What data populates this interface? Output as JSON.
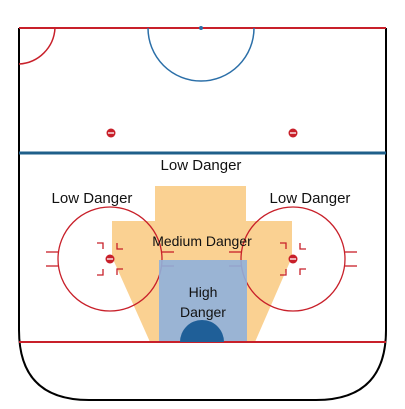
{
  "zones": {
    "low_danger_top": "Low Danger",
    "low_danger_left": "Low Danger",
    "low_danger_right": "Low Danger",
    "medium_danger": "Medium Danger",
    "high_danger_line1": "High",
    "high_danger_line2": "Danger"
  },
  "colors": {
    "boards": "#000000",
    "red_line": "#c8202a",
    "blue_line": "#1f5f8a",
    "center_circle": "#2b6fa8",
    "medium_zone": "#f9c97f",
    "high_zone": "#8fb0dc",
    "crease": "#1f5f98"
  }
}
